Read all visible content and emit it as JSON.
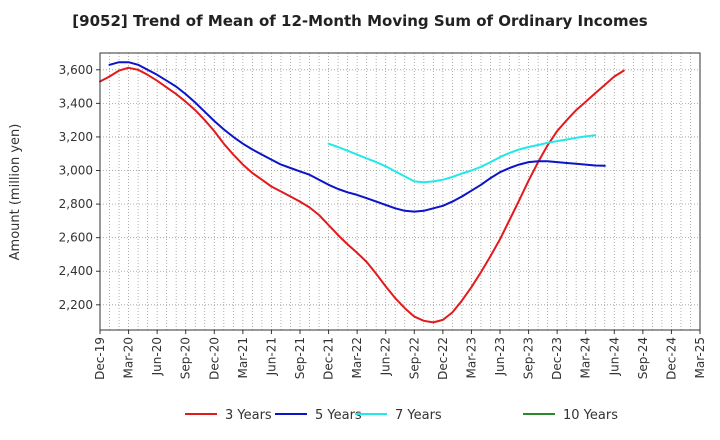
{
  "chart_data": {
    "type": "line",
    "title": "[9052]  Trend of Mean of 12-Month Moving Sum of Ordinary Incomes",
    "xlabel": "",
    "ylabel": "Amount (million yen)",
    "ylim": [
      2050,
      3700
    ],
    "yticks": [
      2200,
      2400,
      2600,
      2800,
      3000,
      3200,
      3400,
      3600
    ],
    "ytick_labels": [
      "2,200",
      "2,400",
      "2,600",
      "2,800",
      "3,000",
      "3,200",
      "3,400",
      "3,600"
    ],
    "x_tick_labels": [
      "Dec-19",
      "Mar-20",
      "Jun-20",
      "Sep-20",
      "Dec-20",
      "Mar-21",
      "Jun-21",
      "Sep-21",
      "Dec-21",
      "Mar-22",
      "Jun-22",
      "Sep-22",
      "Dec-22",
      "Mar-23",
      "Jun-23",
      "Sep-23",
      "Dec-23",
      "Mar-24",
      "Jun-24",
      "Sep-24",
      "Dec-24",
      "Mar-25"
    ],
    "x_minor_per_major": 3,
    "grid": true,
    "legend_position": "bottom",
    "series": [
      {
        "name": "3 Years",
        "color": "#e31a1c",
        "start_index": 0,
        "values": [
          3530,
          3560,
          3595,
          3612,
          3600,
          3570,
          3535,
          3495,
          3455,
          3410,
          3360,
          3300,
          3235,
          3160,
          3095,
          3035,
          2985,
          2945,
          2905,
          2875,
          2845,
          2815,
          2780,
          2735,
          2675,
          2615,
          2560,
          2510,
          2455,
          2385,
          2310,
          2240,
          2180,
          2130,
          2105,
          2095,
          2110,
          2155,
          2225,
          2305,
          2395,
          2490,
          2590,
          2705,
          2820,
          2940,
          3050,
          3150,
          3235,
          3300,
          3360,
          3410,
          3460,
          3510,
          3560,
          3595
        ]
      },
      {
        "name": "5 Years",
        "color": "#0a14c8",
        "start_index": 1,
        "values": [
          3630,
          3645,
          3645,
          3630,
          3600,
          3570,
          3535,
          3500,
          3455,
          3405,
          3350,
          3295,
          3245,
          3200,
          3160,
          3125,
          3095,
          3065,
          3035,
          3015,
          2995,
          2975,
          2945,
          2915,
          2890,
          2870,
          2855,
          2835,
          2815,
          2795,
          2775,
          2760,
          2755,
          2760,
          2775,
          2790,
          2815,
          2845,
          2880,
          2915,
          2955,
          2990,
          3015,
          3035,
          3050,
          3055,
          3055,
          3050,
          3045,
          3040,
          3035,
          3030,
          3028
        ]
      },
      {
        "name": "7 Years",
        "color": "#22e8e8",
        "start_index": 24,
        "values": [
          3160,
          3140,
          3118,
          3095,
          3072,
          3050,
          3025,
          2995,
          2965,
          2935,
          2930,
          2935,
          2945,
          2962,
          2982,
          3000,
          3022,
          3050,
          3080,
          3105,
          3125,
          3140,
          3152,
          3165,
          3175,
          3185,
          3195,
          3203,
          3210
        ]
      },
      {
        "name": "10 Years",
        "color": "#2a8a2a",
        "start_index": 0,
        "values": []
      }
    ]
  }
}
